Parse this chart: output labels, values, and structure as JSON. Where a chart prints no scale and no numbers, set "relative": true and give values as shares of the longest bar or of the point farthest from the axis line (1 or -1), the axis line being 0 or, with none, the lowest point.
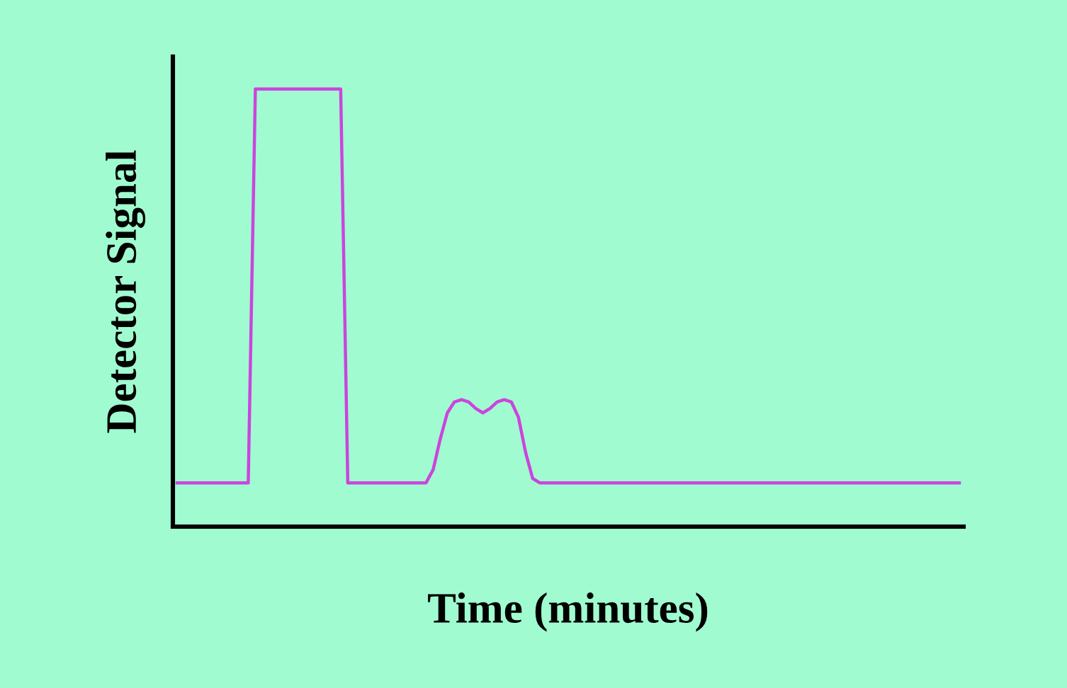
{
  "chart_data": {
    "type": "line",
    "relative": true,
    "xlabel": "Time (minutes)",
    "ylabel": "Detector Signal",
    "color": "#cc44dd",
    "categories": [
      null,
      null,
      null,
      null,
      null,
      null,
      null,
      null,
      null,
      null,
      null,
      null,
      null,
      null,
      null,
      null,
      null,
      null,
      null,
      null,
      null,
      null,
      null,
      null,
      null,
      null,
      null,
      null,
      null,
      null,
      null,
      null,
      null,
      null,
      null,
      null,
      null,
      null,
      null,
      null,
      null,
      null,
      null,
      null,
      null,
      null,
      null,
      null,
      null,
      null,
      null,
      null,
      null,
      null,
      null,
      null,
      null,
      null,
      null,
      null,
      null,
      null,
      null,
      null,
      null,
      null,
      null,
      null,
      null,
      null,
      null,
      null,
      null,
      null,
      null,
      null,
      null,
      null,
      null,
      null,
      null,
      null,
      null,
      null,
      null,
      null,
      null,
      null,
      null,
      null,
      null,
      null,
      null,
      null,
      null,
      null,
      null,
      null,
      null,
      null,
      null,
      null,
      null,
      null,
      null,
      null,
      null,
      null,
      null,
      null,
      null
    ],
    "values": [
      0.1,
      0.1,
      0.1,
      0.1,
      0.1,
      0.1,
      0.1,
      0.1,
      0.1,
      0.1,
      0.1,
      1,
      1,
      1,
      1,
      1,
      1,
      1,
      1,
      1,
      1,
      1,
      1,
      1,
      0.1,
      0.1,
      0.1,
      0.1,
      0.1,
      0.1,
      0.1,
      0.1,
      0.1,
      0.1,
      0.1,
      0.1,
      0.13,
      0.2,
      0.26,
      0.285,
      0.29,
      0.285,
      0.27,
      0.26,
      0.27,
      0.285,
      0.29,
      0.285,
      0.25,
      0.17,
      0.11,
      0.1,
      0.1,
      0.1,
      0.1,
      0.1,
      0.1,
      0.1,
      0.1,
      0.1,
      0.1,
      0.1,
      0.1,
      0.1,
      0.1,
      0.1,
      0.1,
      0.1,
      0.1,
      0.1,
      0.1,
      0.1,
      0.1,
      0.1,
      0.1,
      0.1,
      0.1,
      0.1,
      0.1,
      0.1,
      0.1,
      0.1,
      0.1,
      0.1,
      0.1,
      0.1,
      0.1,
      0.1,
      0.1,
      0.1,
      0.1,
      0.1,
      0.1,
      0.1,
      0.1,
      0.1,
      0.1,
      0.1,
      0.1,
      0.1,
      0.1,
      0.1,
      0.1,
      0.1,
      0.1,
      0.1,
      0.1,
      0.1,
      0.1,
      0.1,
      0.1
    ]
  }
}
